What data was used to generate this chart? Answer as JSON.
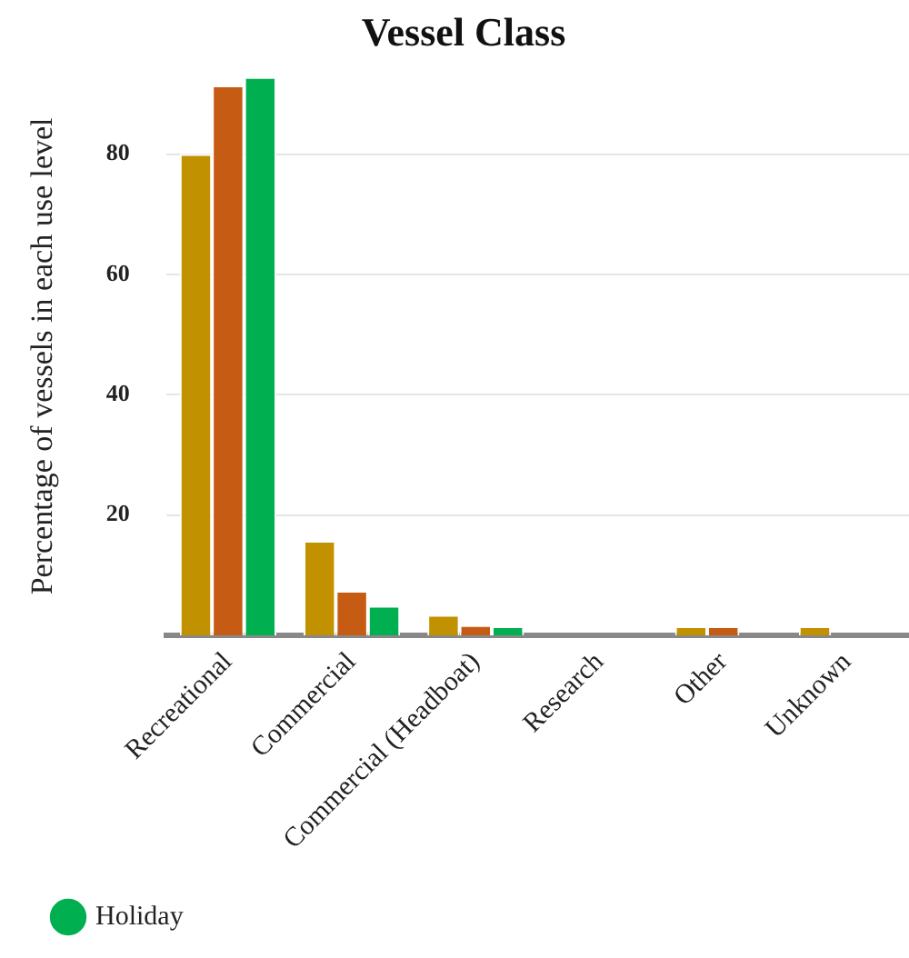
{
  "chart_data": {
    "type": "bar",
    "title": "Vessel Class",
    "ylabel": "Percentage of vessels in each use level",
    "categories": [
      "Recreational",
      "Commercial",
      "Commercial (Headboat)",
      "Research",
      "Other",
      "Unknown"
    ],
    "series": [
      {
        "color": "#c29100",
        "values": [
          80,
          15.7,
          3.4,
          0,
          1.5,
          1.5
        ]
      },
      {
        "color": "#c65b14",
        "values": [
          91.4,
          7.4,
          1.7,
          0,
          1.5,
          0
        ]
      },
      {
        "name": "Holiday",
        "color": "#00b050",
        "values": [
          92.8,
          4.9,
          1.5,
          0,
          0,
          0
        ]
      }
    ],
    "ylim": [
      0,
      92.8
    ],
    "yticks": [
      20,
      40,
      60,
      80
    ],
    "grid": "y",
    "legend": "bottom left"
  }
}
